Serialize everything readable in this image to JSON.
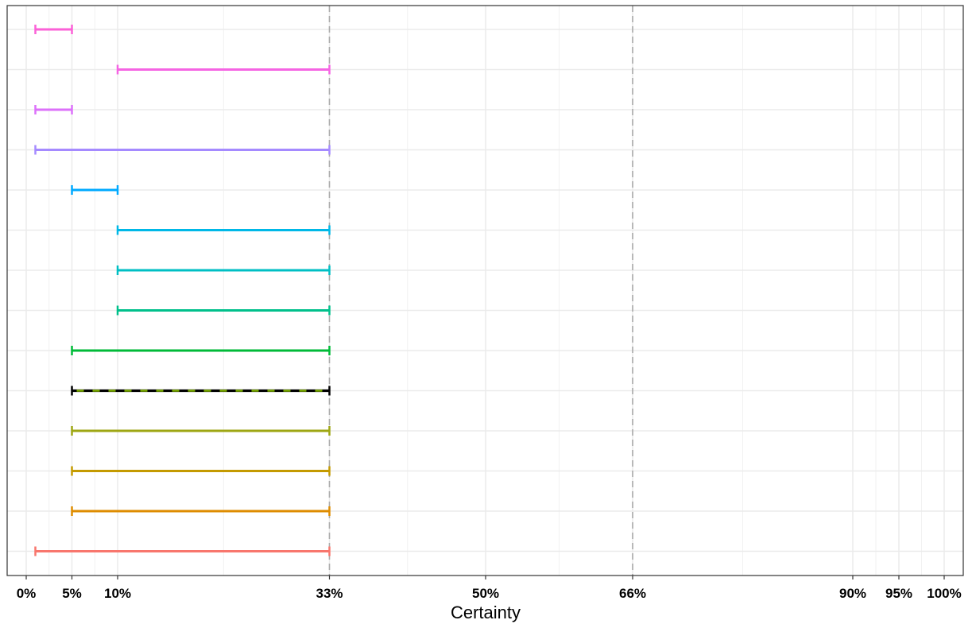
{
  "chart_data": {
    "type": "interval",
    "xlabel": "Certainty",
    "x_unit": "%",
    "x_ticks": [
      {
        "value": 0,
        "label": "0%"
      },
      {
        "value": 5,
        "label": "5%"
      },
      {
        "value": 10,
        "label": "10%"
      },
      {
        "value": 33,
        "label": "33%"
      },
      {
        "value": 50,
        "label": "50%"
      },
      {
        "value": 66,
        "label": "66%"
      },
      {
        "value": 90,
        "label": "90%"
      },
      {
        "value": 95,
        "label": "95%"
      },
      {
        "value": 100,
        "label": "100%"
      }
    ],
    "xlim": [
      -2,
      101
    ],
    "minor_gridlines": [
      2.5,
      7.5,
      21.5,
      41.5,
      58,
      78,
      92.5,
      97.5
    ],
    "reference_lines": [
      33,
      66
    ],
    "grid": true,
    "intervals": [
      {
        "low": 1,
        "high": 5,
        "color": "#FB61D7"
      },
      {
        "low": 10,
        "high": 33,
        "color": "#F564E3"
      },
      {
        "low": 1,
        "high": 5,
        "color": "#DC71FA"
      },
      {
        "low": 1,
        "high": 33,
        "color": "#A58AFF"
      },
      {
        "low": 5,
        "high": 10,
        "color": "#00A9FF"
      },
      {
        "low": 10,
        "high": 33,
        "color": "#00B8E7"
      },
      {
        "low": 10,
        "high": 33,
        "color": "#00BFC4"
      },
      {
        "low": 10,
        "high": 33,
        "color": "#00C08B"
      },
      {
        "low": 5,
        "high": 33,
        "color": "#00BA38"
      },
      {
        "low": 5,
        "high": 33,
        "color": "#000000",
        "dashed_overlay": "#7CAE00"
      },
      {
        "low": 5,
        "high": 33,
        "color": "#9EA613"
      },
      {
        "low": 5,
        "high": 33,
        "color": "#C49A00"
      },
      {
        "low": 5,
        "high": 33,
        "color": "#DE8C00"
      },
      {
        "low": 1,
        "high": 33,
        "color": "#F8766D"
      }
    ]
  }
}
